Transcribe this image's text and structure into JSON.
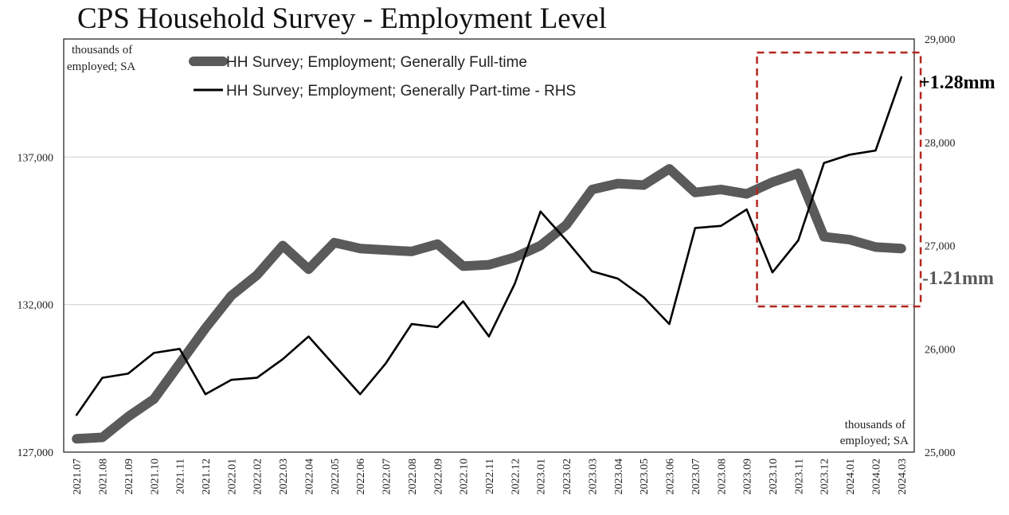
{
  "title": "CPS Household Survey - Employment Level",
  "chart_data": {
    "type": "line",
    "title": "CPS Household Survey - Employment Level",
    "left_axis": {
      "unit_label": [
        "thousands of",
        "employed; SA"
      ],
      "ylim": [
        127000,
        141000
      ],
      "ticks": [
        127000,
        132000,
        137000
      ],
      "tick_labels": [
        "127,000",
        "132,000",
        "137,000"
      ]
    },
    "right_axis": {
      "unit_label": [
        "thousands of",
        "employed; SA"
      ],
      "ylim": [
        25000,
        29000
      ],
      "ticks": [
        25000,
        26000,
        27000,
        28000,
        29000
      ],
      "tick_labels": [
        "25,000",
        "26,000",
        "27,000",
        "28,000",
        "29,000"
      ]
    },
    "grid": "horizontal, left-axis ticks",
    "legend_position": "top-left",
    "x": [
      "2021.07",
      "2021.08",
      "2021.09",
      "2021.10",
      "2021.11",
      "2021.12",
      "2022.01",
      "2022.02",
      "2022.03",
      "2022.04",
      "2022.05",
      "2022.06",
      "2022.07",
      "2022.08",
      "2022.09",
      "2022.10",
      "2022.11",
      "2022.12",
      "2023.01",
      "2023.02",
      "2023.03",
      "2023.04",
      "2023.05",
      "2023.06",
      "2023.07",
      "2023.08",
      "2023.09",
      "2023.10",
      "2023.11",
      "2023.12",
      "2024.01",
      "2024.02",
      "2024.03"
    ],
    "series": [
      {
        "name": "HH Survey; Employment; Generally Full-time",
        "axis": "left",
        "color": "#5a5a5a",
        "style": "thick",
        "values": [
          127450,
          127500,
          128200,
          128800,
          130000,
          131200,
          132300,
          133000,
          134000,
          133200,
          134100,
          133900,
          133850,
          133800,
          134050,
          133300,
          133350,
          133600,
          134000,
          134700,
          135900,
          136100,
          136050,
          136600,
          135800,
          135900,
          135750,
          136150,
          136450,
          134300,
          134200,
          133950,
          133900
        ]
      },
      {
        "name": "HH Survey; Employment; Generally Part-time - RHS",
        "axis": "right",
        "color": "#000000",
        "style": "thin",
        "values": [
          25360,
          25720,
          25760,
          25960,
          26000,
          25560,
          25700,
          25720,
          25900,
          26120,
          25840,
          25560,
          25860,
          26240,
          26210,
          26460,
          26120,
          26630,
          27330,
          27050,
          26750,
          26680,
          26500,
          26240,
          27170,
          27190,
          27350,
          26740,
          27050,
          27800,
          27880,
          27920,
          28630
        ]
      }
    ],
    "annotations": {
      "highlight_box": {
        "x_from": "2023.10",
        "x_to": "2024.03",
        "color": "#b5261e",
        "style": "dashed"
      },
      "part_time_change": {
        "text": "+1.28mm",
        "color": "#000000"
      },
      "full_time_change": {
        "text": "-1.21mm",
        "color": "#5a5a5a"
      }
    }
  }
}
